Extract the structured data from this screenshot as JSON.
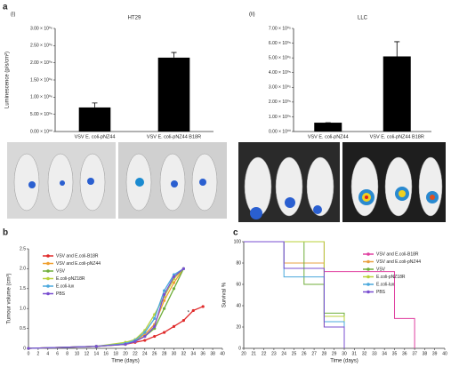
{
  "panel_labels": [
    "a",
    "b",
    "c"
  ],
  "chart_data": [
    {
      "type": "bar",
      "panel": "(i)",
      "title": "HT29",
      "ylabel": "Luminescence (p/s/cm²)",
      "categories": [
        "VSV E. coli-pNZ44",
        "VSV E. coli-pNZ44 B18R"
      ],
      "values": [
        700000,
        2150000
      ],
      "errors": [
        130000,
        150000
      ],
      "color": "#000000",
      "ylim": [
        0,
        3000000
      ],
      "yticks": [
        {
          "value": 0,
          "label": "0.00 × 10⁰⁰"
        },
        {
          "value": 500000,
          "label": "5.00 × 10⁰⁵"
        },
        {
          "value": 1000000,
          "label": "1.00 × 10⁰⁶"
        },
        {
          "value": 1500000,
          "label": "1.50 × 10⁰⁶"
        },
        {
          "value": 2000000,
          "label": "2.00 × 10⁰⁶"
        },
        {
          "value": 2500000,
          "label": "2.50 × 10⁰⁶"
        },
        {
          "value": 3000000,
          "label": "3.00 × 10⁰⁶"
        }
      ]
    },
    {
      "type": "bar",
      "panel": "(ii)",
      "title": "LLC",
      "categories": [
        "VSV E. coli-pNZ44",
        "VSV E. coli-pNZ44 B18R"
      ],
      "values": [
        60000,
        510000
      ],
      "errors": [
        0,
        100000
      ],
      "color": "#000000",
      "ylim": [
        0,
        700000
      ],
      "yticks": [
        {
          "value": 0,
          "label": "0.00 × 10⁰⁰"
        },
        {
          "value": 100000,
          "label": "1.00 × 10⁰⁵"
        },
        {
          "value": 200000,
          "label": "2.00 × 10⁰⁵"
        },
        {
          "value": 300000,
          "label": "3.00 × 10⁰⁵"
        },
        {
          "value": 400000,
          "label": "4.00 × 10⁰⁵"
        },
        {
          "value": 500000,
          "label": "5.00 × 10⁰⁵"
        },
        {
          "value": 600000,
          "label": "6.00 × 10⁰⁵"
        },
        {
          "value": 700000,
          "label": "7.00 × 10⁰⁵"
        }
      ]
    },
    {
      "type": "line",
      "xlabel": "Time (days)",
      "ylabel": "Tumour volume (cm³)",
      "x": [
        0,
        14,
        20,
        22,
        24,
        26,
        28,
        30,
        32,
        34,
        36
      ],
      "series": [
        {
          "name": "VSV and E.coli-B18R",
          "color": "#e02a2a",
          "values": [
            0,
            0.05,
            0.1,
            0.15,
            0.2,
            0.3,
            0.4,
            0.55,
            0.7,
            0.95,
            1.05
          ]
        },
        {
          "name": "VSV and E.coli-pNZ44",
          "color": "#f0a030",
          "values": [
            0,
            0.05,
            0.12,
            0.2,
            0.35,
            0.6,
            1.2,
            1.65,
            2.0,
            null,
            null
          ]
        },
        {
          "name": "VSV",
          "color": "#6fae3a",
          "values": [
            0,
            0.05,
            0.1,
            0.18,
            0.3,
            0.5,
            1.0,
            1.5,
            2.0,
            null,
            null
          ]
        },
        {
          "name": "E.coli-pNZ18R",
          "color": "#b8d23a",
          "values": [
            0,
            0.05,
            0.15,
            0.22,
            0.45,
            0.85,
            1.3,
            1.75,
            2.0,
            null,
            null
          ]
        },
        {
          "name": "E.coli-lux",
          "color": "#4aa8dc",
          "values": [
            0,
            0.05,
            0.12,
            0.2,
            0.4,
            0.75,
            1.45,
            1.85,
            2.0,
            null,
            null
          ]
        },
        {
          "name": "PBS",
          "color": "#7a4fd0",
          "values": [
            0,
            0.05,
            0.1,
            0.17,
            0.3,
            0.55,
            1.35,
            1.8,
            2.0,
            null,
            null
          ]
        }
      ],
      "xlim": [
        0,
        40
      ],
      "xticks": [
        0,
        2,
        4,
        6,
        8,
        10,
        12,
        14,
        16,
        18,
        20,
        22,
        24,
        26,
        28,
        30,
        32,
        34,
        36,
        38,
        40
      ],
      "ylim": [
        0,
        2.5
      ],
      "yticks": [
        0,
        0.5,
        {
          "value": 1,
          "label": "1.0"
        },
        1.5,
        {
          "value": 2,
          "label": "2.0"
        },
        2.5
      ],
      "annotation": {
        "text": "*",
        "x": 33,
        "y": 0.9
      }
    },
    {
      "type": "step",
      "xlabel": "Time (days)",
      "ylabel": "Survival %",
      "series": [
        {
          "name": "VSV and E.coli-B18R",
          "color": "#e040a0",
          "x": [
            20,
            28,
            35,
            37
          ],
          "values": [
            100,
            72,
            28,
            0
          ]
        },
        {
          "name": "VSV and E.coli-pNZ44",
          "color": "#e8a040",
          "x": [
            20,
            24,
            28,
            30
          ],
          "values": [
            100,
            80,
            20,
            0
          ]
        },
        {
          "name": "VSV",
          "color": "#6fae3a",
          "x": [
            20,
            26,
            28,
            30
          ],
          "values": [
            100,
            60,
            33,
            0
          ]
        },
        {
          "name": "E.coli-pNZ18R",
          "color": "#b8d23a",
          "x": [
            20,
            28,
            30
          ],
          "values": [
            100,
            30,
            0
          ]
        },
        {
          "name": "E.coli-lux",
          "color": "#4aa8dc",
          "x": [
            20,
            24,
            28,
            30
          ],
          "values": [
            100,
            67,
            25,
            0
          ]
        },
        {
          "name": "PBS",
          "color": "#7a4fd0",
          "x": [
            20,
            24,
            28,
            30
          ],
          "values": [
            100,
            75,
            20,
            0
          ]
        }
      ],
      "xlim": [
        20,
        40
      ],
      "xticks": [
        20,
        21,
        22,
        23,
        24,
        25,
        26,
        27,
        28,
        29,
        30,
        31,
        32,
        33,
        34,
        35,
        36,
        37,
        38,
        39,
        40
      ],
      "ylim": [
        0,
        100
      ],
      "yticks": [
        0,
        20,
        40,
        60,
        80,
        100
      ]
    }
  ]
}
